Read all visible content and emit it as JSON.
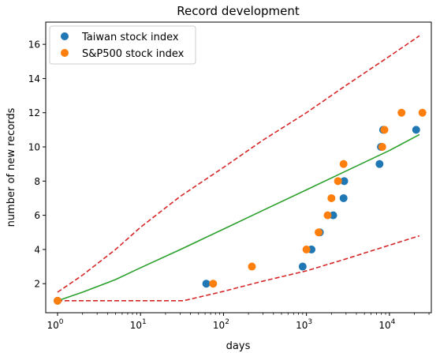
{
  "chart_data": {
    "type": "scatter",
    "title": "Record development",
    "xlabel": "days",
    "ylabel": "number of new records",
    "xscale": "log",
    "xlim": [
      0.72,
      32000
    ],
    "ylim": [
      0.3,
      17.3
    ],
    "x_ticks": [
      {
        "value": 1,
        "base": "10",
        "exp": "0"
      },
      {
        "value": 10,
        "base": "10",
        "exp": "1"
      },
      {
        "value": 100,
        "base": "10",
        "exp": "2"
      },
      {
        "value": 1000,
        "base": "10",
        "exp": "3"
      },
      {
        "value": 10000,
        "base": "10",
        "exp": "4"
      }
    ],
    "y_ticks": [
      2,
      4,
      6,
      8,
      10,
      12,
      14,
      16
    ],
    "grid": false,
    "legend_position": "top-left",
    "series": [
      {
        "name": "Taiwan stock index",
        "kind": "scatter",
        "color": "#1f77b4",
        "x": [
          1,
          62,
          900,
          1150,
          1450,
          2100,
          2800,
          2850,
          7600,
          7900,
          8400,
          21000
        ],
        "y": [
          1,
          2,
          3,
          4,
          5,
          6,
          7,
          8,
          9,
          10,
          11,
          11
        ]
      },
      {
        "name": "S&P500 stock index",
        "kind": "scatter",
        "color": "#ff7f0e",
        "x": [
          1,
          75,
          220,
          1000,
          1400,
          1800,
          2000,
          2400,
          2800,
          8200,
          8700,
          14000,
          25000
        ],
        "y": [
          1,
          2,
          3,
          4,
          5,
          6,
          7,
          8,
          9,
          10,
          11,
          12,
          12
        ]
      }
    ],
    "lines": [
      {
        "kind": "solid",
        "color": "#2ca02c",
        "x": [
          1,
          2,
          5,
          10,
          30,
          100,
          300,
          1000,
          3000,
          10000,
          23000
        ],
        "y": [
          1,
          1.5,
          2.24,
          2.93,
          3.99,
          5.19,
          6.29,
          7.49,
          8.59,
          9.79,
          10.72
        ]
      },
      {
        "kind": "dashed",
        "color": "#d62728",
        "x": [
          1,
          2,
          5,
          10,
          30,
          100,
          300,
          1000,
          3000,
          10000,
          23000
        ],
        "y": [
          1.5,
          2.5,
          4.0,
          5.3,
          7.1,
          8.8,
          10.4,
          12.0,
          13.6,
          15.3,
          16.5
        ]
      },
      {
        "kind": "dashed",
        "color": "#d62728",
        "x": [
          1,
          2,
          10,
          33,
          100,
          300,
          1000,
          3000,
          10000,
          23000
        ],
        "y": [
          1,
          1,
          1,
          1,
          1.55,
          2.15,
          2.75,
          3.45,
          4.25,
          4.8
        ]
      }
    ]
  }
}
